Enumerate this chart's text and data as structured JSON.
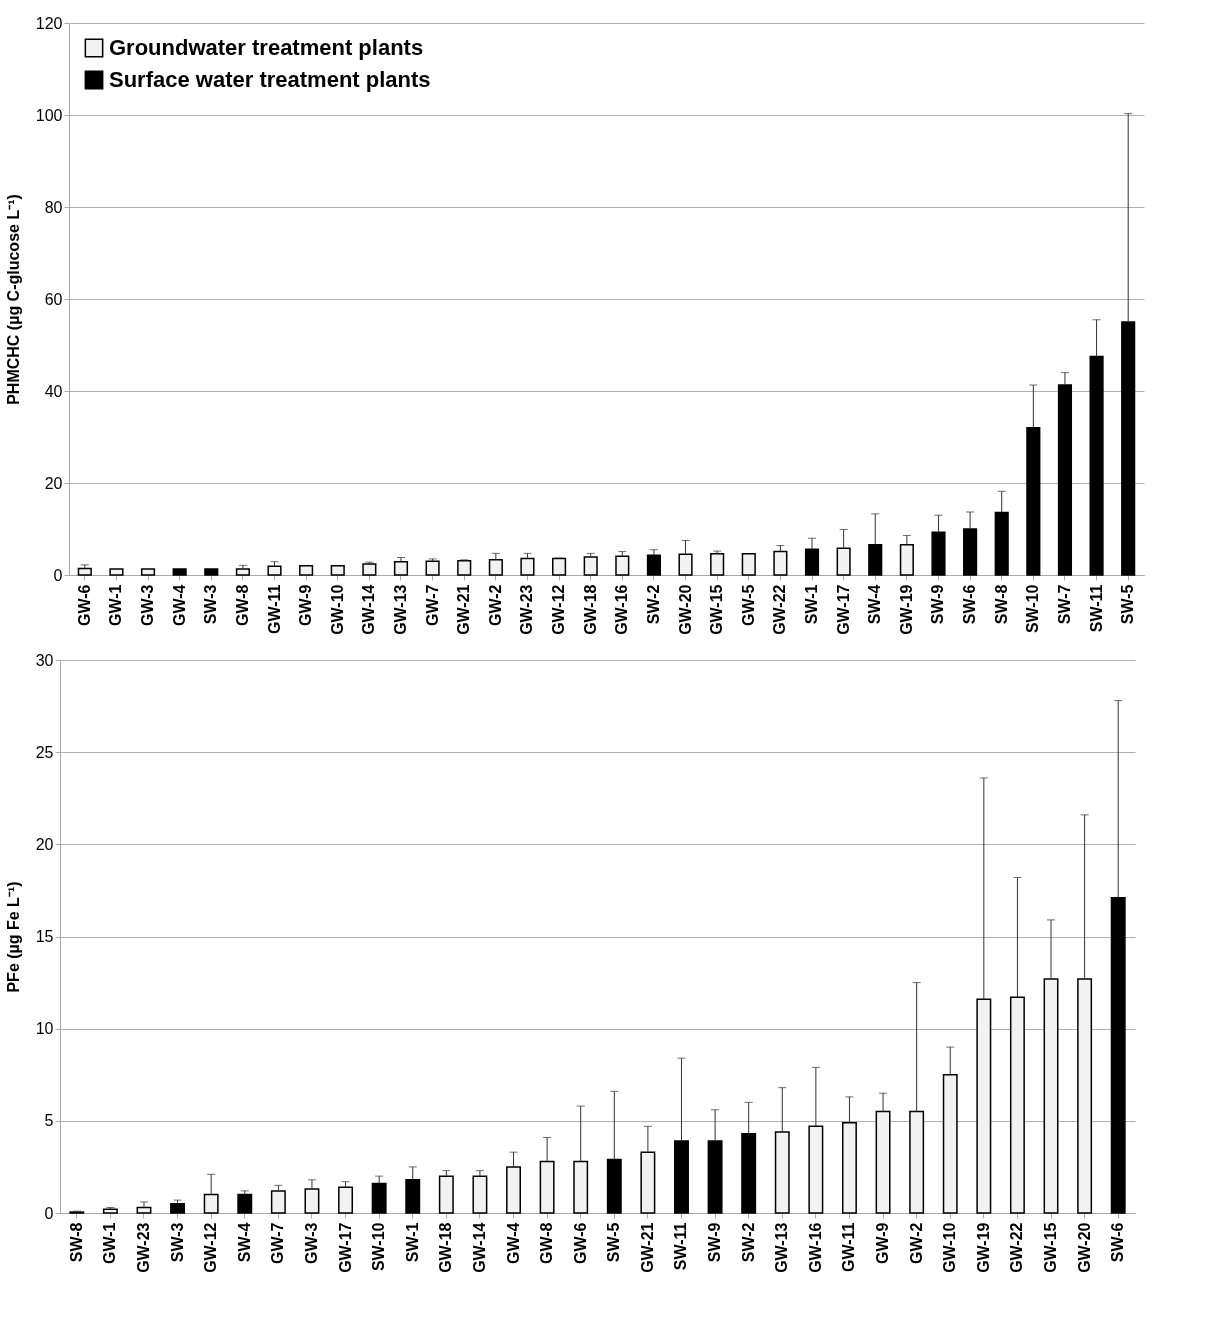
{
  "chart_data": [
    {
      "type": "bar",
      "ylabel": "PHMCHC (µg C-glucose L⁻¹)",
      "categories": [
        "GW-6",
        "GW-1",
        "GW-3",
        "GW-4",
        "SW-3",
        "GW-8",
        "GW-11",
        "GW-9",
        "GW-10",
        "GW-14",
        "GW-13",
        "GW-7",
        "GW-21",
        "GW-2",
        "GW-23",
        "GW-12",
        "GW-18",
        "GW-16",
        "SW-2",
        "GW-20",
        "GW-15",
        "GW-5",
        "GW-22",
        "SW-1",
        "GW-17",
        "SW-4",
        "GW-19",
        "SW-9",
        "SW-6",
        "SW-8",
        "SW-10",
        "SW-7",
        "SW-11",
        "SW-5"
      ],
      "series": [
        {
          "name": "Groundwater treatment plants",
          "color": "#f2f2f2",
          "values": [
            1.4,
            1.3,
            1.3,
            null,
            null,
            1.3,
            1.9,
            2.0,
            2.0,
            2.4,
            2.9,
            3.0,
            3.1,
            3.3,
            3.6,
            3.6,
            3.9,
            4.1,
            null,
            4.5,
            4.6,
            4.6,
            5.1,
            null,
            5.8,
            null,
            6.6,
            null,
            null,
            null,
            null,
            null,
            null,
            null
          ],
          "errors": [
            [
              1.4,
              2.2
            ],
            null,
            null,
            null,
            null,
            [
              1.3,
              2.1
            ],
            [
              1.9,
              2.9
            ],
            null,
            null,
            [
              2.4,
              2.8
            ],
            [
              2.9,
              3.8
            ],
            [
              3.0,
              3.5
            ],
            [
              3.1,
              3.3
            ],
            [
              3.3,
              4.7
            ],
            [
              3.6,
              4.7
            ],
            [
              3.6,
              3.7
            ],
            [
              3.9,
              4.7
            ],
            [
              4.1,
              5.1
            ],
            null,
            [
              4.5,
              7.5
            ],
            [
              4.6,
              5.2
            ],
            null,
            [
              5.1,
              6.4
            ],
            null,
            [
              5.8,
              9.9
            ],
            null,
            [
              6.6,
              8.6
            ],
            null,
            null,
            null,
            null,
            null,
            null,
            null
          ]
        },
        {
          "name": "Surface water treatment plants",
          "color": "#000000",
          "values": [
            null,
            null,
            null,
            1.3,
            1.3,
            null,
            null,
            null,
            null,
            null,
            null,
            null,
            null,
            null,
            null,
            null,
            null,
            null,
            4.3,
            null,
            null,
            null,
            null,
            5.6,
            null,
            6.6,
            null,
            9.3,
            10.0,
            13.6,
            32,
            41.3,
            47.5,
            55
          ],
          "errors": [
            null,
            null,
            null,
            null,
            null,
            null,
            null,
            null,
            null,
            null,
            null,
            null,
            null,
            null,
            null,
            null,
            null,
            null,
            [
              4.3,
              5.5
            ],
            null,
            null,
            null,
            null,
            [
              5.6,
              8.0
            ],
            null,
            [
              6.6,
              13.3
            ],
            null,
            [
              9.3,
              13.0
            ],
            [
              10.0,
              13.7
            ],
            [
              13.6,
              18.2
            ],
            [
              32,
              41.3
            ],
            [
              41.3,
              44.0
            ],
            [
              47.5,
              55.5
            ],
            [
              55,
              100.3
            ]
          ]
        }
      ],
      "ylim": [
        0,
        120
      ],
      "yticks": [
        0,
        20,
        40,
        60,
        80,
        100,
        120
      ],
      "grid": "y",
      "legend": "top left"
    },
    {
      "type": "bar",
      "ylabel": "PFe (µg Fe L⁻¹)",
      "categories": [
        "SW-8",
        "GW-1",
        "GW-23",
        "SW-3",
        "GW-12",
        "SW-4",
        "GW-7",
        "GW-3",
        "GW-17",
        "SW-10",
        "SW-1",
        "GW-18",
        "GW-14",
        "GW-4",
        "GW-8",
        "GW-6",
        "SW-5",
        "GW-21",
        "SW-11",
        "SW-9",
        "SW-2",
        "GW-13",
        "GW-16",
        "GW-11",
        "GW-9",
        "GW-2",
        "GW-10",
        "GW-19",
        "GW-22",
        "GW-15",
        "GW-20",
        "SW-6"
      ],
      "series": [
        {
          "color": "#f2f2f2",
          "values": [
            null,
            0.2,
            0.3,
            null,
            1.0,
            null,
            1.2,
            1.3,
            1.4,
            null,
            null,
            2.0,
            2.0,
            2.5,
            2.8,
            2.8,
            null,
            3.3,
            null,
            null,
            null,
            4.4,
            4.7,
            4.9,
            5.5,
            5.5,
            7.5,
            11.6,
            11.7,
            12.7,
            12.7,
            null
          ],
          "errors": [
            null,
            [
              0.2,
              0.3
            ],
            [
              0.3,
              0.6
            ],
            null,
            [
              1.0,
              2.1
            ],
            null,
            [
              1.2,
              1.5
            ],
            [
              1.3,
              1.8
            ],
            [
              1.4,
              1.7
            ],
            null,
            null,
            [
              2.0,
              2.3
            ],
            [
              2.0,
              2.3
            ],
            [
              2.5,
              3.3
            ],
            [
              2.8,
              4.1
            ],
            [
              2.8,
              5.8
            ],
            null,
            [
              3.3,
              4.7
            ],
            null,
            null,
            null,
            [
              4.4,
              6.8
            ],
            [
              4.7,
              7.9
            ],
            [
              4.9,
              6.3
            ],
            [
              5.5,
              6.5
            ],
            [
              5.5,
              12.5
            ],
            [
              7.5,
              9.0
            ],
            [
              11.6,
              23.6
            ],
            [
              11.7,
              18.2
            ],
            [
              12.7,
              15.9
            ],
            [
              12.7,
              21.6
            ],
            null
          ]
        },
        {
          "color": "#000000",
          "values": [
            0.05,
            null,
            null,
            0.5,
            null,
            1.0,
            null,
            null,
            null,
            1.6,
            1.8,
            null,
            null,
            null,
            null,
            null,
            2.9,
            null,
            3.9,
            3.9,
            4.3,
            null,
            null,
            null,
            null,
            null,
            null,
            null,
            null,
            null,
            null,
            17.1
          ],
          "errors": [
            [
              0.05,
              0.1
            ],
            null,
            null,
            [
              0.5,
              0.7
            ],
            null,
            [
              1.0,
              1.2
            ],
            null,
            null,
            null,
            [
              1.6,
              2.0
            ],
            [
              1.8,
              2.5
            ],
            null,
            null,
            null,
            null,
            null,
            [
              2.9,
              6.6
            ],
            null,
            [
              3.9,
              8.4
            ],
            [
              3.9,
              5.6
            ],
            [
              4.3,
              6.0
            ],
            null,
            null,
            null,
            null,
            null,
            null,
            null,
            null,
            null,
            null,
            [
              17.1,
              27.8
            ]
          ]
        }
      ],
      "ylim": [
        0,
        30
      ],
      "yticks": [
        0,
        5,
        10,
        15,
        20,
        25,
        30
      ],
      "grid": "y"
    }
  ]
}
